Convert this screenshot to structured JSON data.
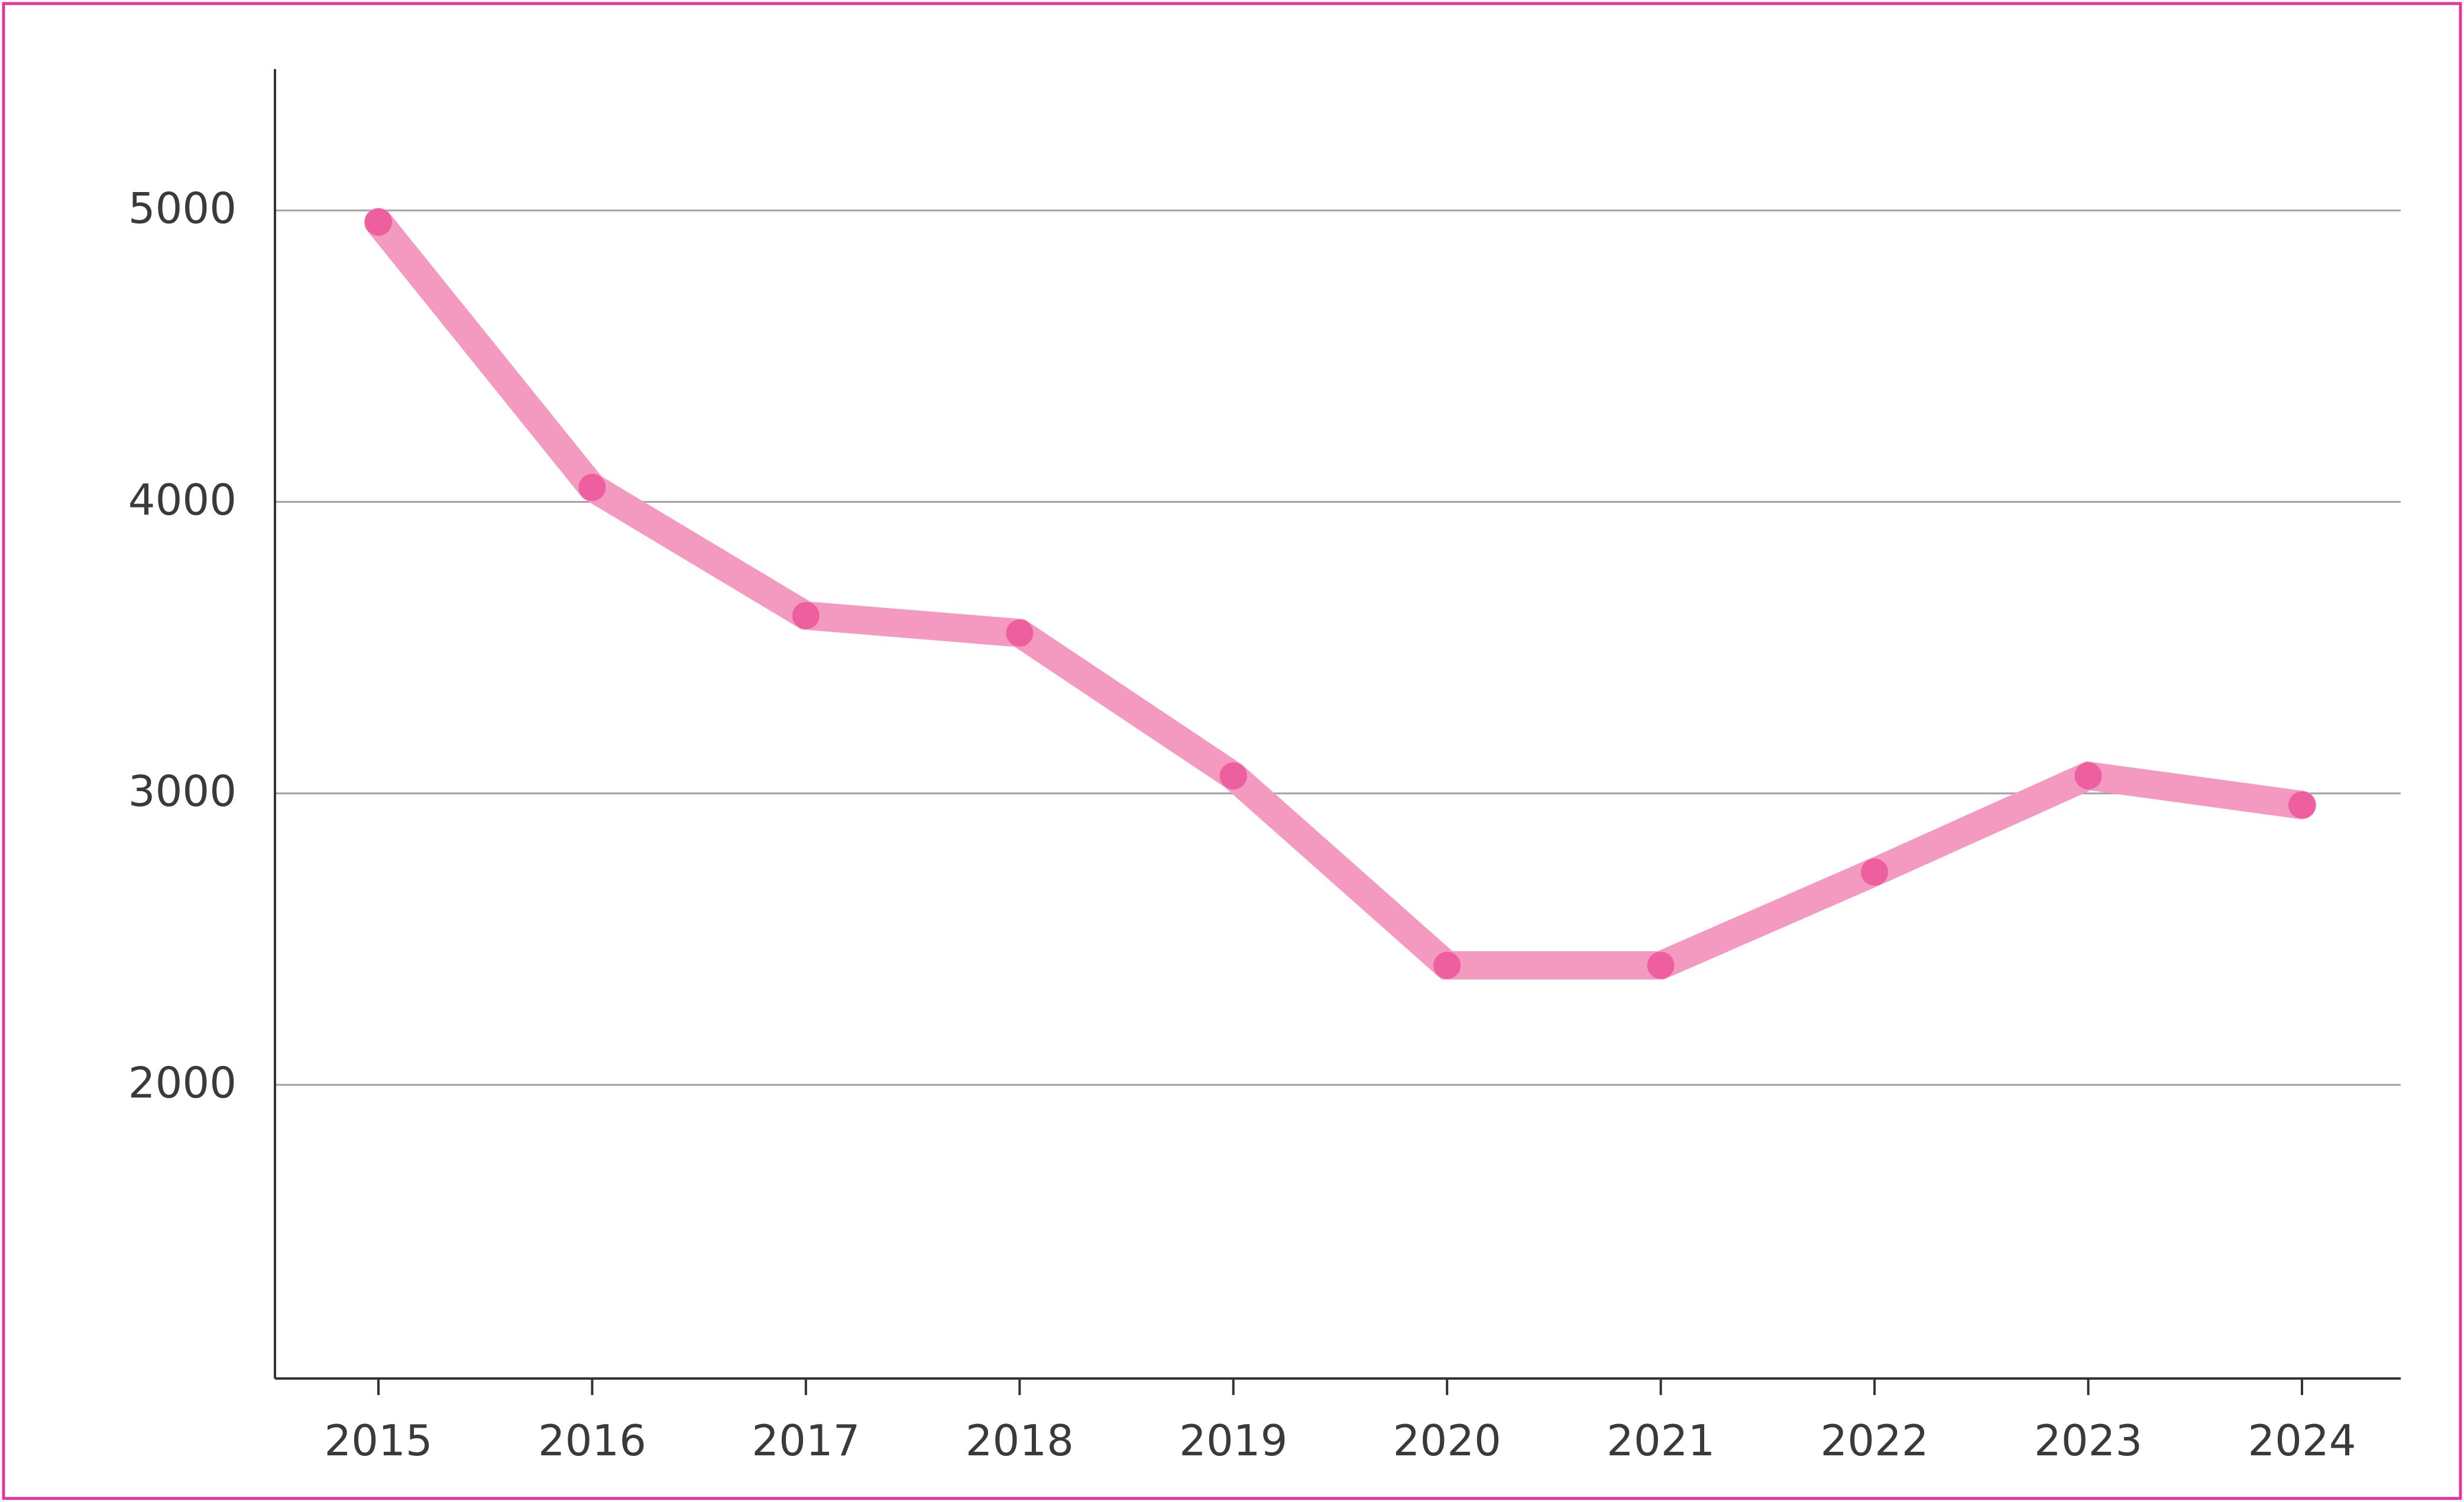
{
  "chart_data": {
    "type": "line",
    "title": "",
    "xlabel": "",
    "ylabel": "",
    "categories": [
      "2015",
      "2016",
      "2017",
      "2018",
      "2019",
      "2020",
      "2021",
      "2022",
      "2023",
      "2024"
    ],
    "series": [
      {
        "values": [
          4960,
          4050,
          3610,
          3550,
          3060,
          2410,
          2410,
          2730,
          3060,
          2960
        ]
      }
    ],
    "yticks": [
      2000,
      3000,
      4000,
      5000
    ],
    "ylim": [
      1000,
      5500
    ],
    "grid": "horizontal",
    "colors": {
      "line": "#f49ac1",
      "marker": "#ee5fa0",
      "border": "#e2369c",
      "grid": "#a0a0a0",
      "axis": "#333333"
    }
  }
}
